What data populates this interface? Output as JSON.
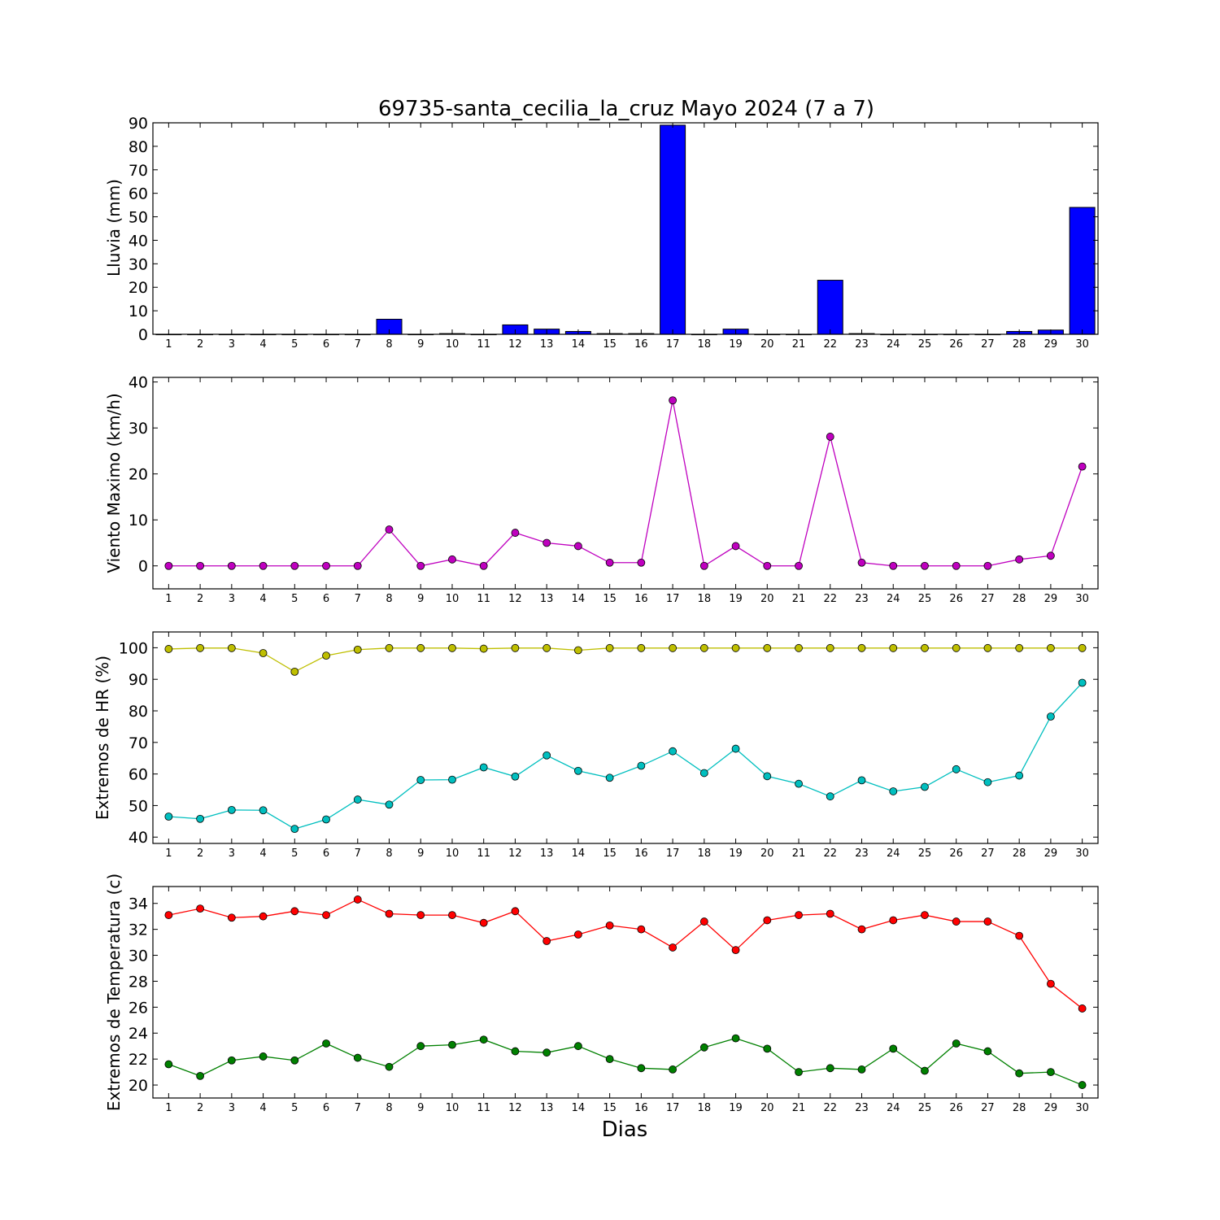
{
  "figure": {
    "title": "69735-santa_cecilia_la_cruz Mayo 2024  (7 a 7)",
    "xlabel": "Dias"
  },
  "chart_data": [
    {
      "type": "bar",
      "ylabel": "Lluvia (mm)",
      "ylim": [
        0,
        90
      ],
      "yticks": [
        0,
        10,
        20,
        30,
        40,
        50,
        60,
        70,
        80,
        90
      ],
      "categories": [
        1,
        2,
        3,
        4,
        5,
        6,
        7,
        8,
        9,
        10,
        11,
        12,
        13,
        14,
        15,
        16,
        17,
        18,
        19,
        20,
        21,
        22,
        23,
        24,
        25,
        26,
        27,
        28,
        29,
        30
      ],
      "series": [
        {
          "color": "#0000ff",
          "values": [
            0,
            0,
            0,
            0,
            0,
            0,
            0,
            6.4,
            0,
            0.3,
            0,
            4,
            2.2,
            1.2,
            0.3,
            0.3,
            89,
            0,
            2.2,
            0,
            0,
            23,
            0.3,
            0,
            0,
            0,
            0,
            1.2,
            1.8,
            54
          ]
        }
      ],
      "grid": false
    },
    {
      "type": "line",
      "ylabel": "Viento Maximo (km/h)",
      "ylim": [
        -5,
        41
      ],
      "yticks": [
        0,
        10,
        20,
        30,
        40
      ],
      "x": [
        1,
        2,
        3,
        4,
        5,
        6,
        7,
        8,
        9,
        10,
        11,
        12,
        13,
        14,
        15,
        16,
        17,
        18,
        19,
        20,
        21,
        22,
        23,
        24,
        25,
        26,
        27,
        28,
        29,
        30
      ],
      "series": [
        {
          "color": "#bf00bf",
          "values": [
            0,
            0,
            0,
            0,
            0,
            0,
            0,
            7.9,
            0,
            1.4,
            0,
            7.2,
            5,
            4.3,
            0.7,
            0.7,
            36,
            0,
            4.3,
            0,
            0,
            28.1,
            0.7,
            0,
            0,
            0,
            0,
            1.4,
            2.2,
            21.6
          ]
        }
      ],
      "grid": false
    },
    {
      "type": "line",
      "ylabel": "Extremos de HR (%)",
      "ylim": [
        38,
        105
      ],
      "yticks": [
        40,
        50,
        60,
        70,
        80,
        90,
        100
      ],
      "x": [
        1,
        2,
        3,
        4,
        5,
        6,
        7,
        8,
        9,
        10,
        11,
        12,
        13,
        14,
        15,
        16,
        17,
        18,
        19,
        20,
        21,
        22,
        23,
        24,
        25,
        26,
        27,
        28,
        29,
        30
      ],
      "series": [
        {
          "color": "#bfbf00",
          "values": [
            99.6,
            99.9,
            99.9,
            98.3,
            92.4,
            97.5,
            99.4,
            99.9,
            99.9,
            99.9,
            99.7,
            99.9,
            99.9,
            99.2,
            99.9,
            99.9,
            99.9,
            99.9,
            99.9,
            99.9,
            99.9,
            99.9,
            99.9,
            99.9,
            99.9,
            99.9,
            99.9,
            99.9,
            99.9,
            99.9
          ]
        },
        {
          "color": "#00bfbf",
          "values": [
            46.5,
            45.8,
            48.6,
            48.5,
            42.6,
            45.6,
            51.9,
            50.3,
            58.1,
            58.2,
            62.1,
            59.2,
            65.9,
            61,
            58.8,
            62.6,
            67.2,
            60.3,
            68,
            59.3,
            56.9,
            52.9,
            58,
            54.5,
            55.9,
            61.5,
            57.4,
            59.5,
            78.2,
            88.9
          ]
        }
      ],
      "grid": false
    },
    {
      "type": "line",
      "ylabel": "Extremos de Temperatura (c)",
      "ylim": [
        19,
        35.3
      ],
      "yticks": [
        20,
        22,
        24,
        26,
        28,
        30,
        32,
        34
      ],
      "x": [
        1,
        2,
        3,
        4,
        5,
        6,
        7,
        8,
        9,
        10,
        11,
        12,
        13,
        14,
        15,
        16,
        17,
        18,
        19,
        20,
        21,
        22,
        23,
        24,
        25,
        26,
        27,
        28,
        29,
        30
      ],
      "series": [
        {
          "color": "#ff0000",
          "values": [
            33.1,
            33.6,
            32.9,
            33,
            33.4,
            33.1,
            34.3,
            33.2,
            33.1,
            33.1,
            32.5,
            33.4,
            31.1,
            31.6,
            32.3,
            32,
            30.6,
            32.6,
            30.4,
            32.7,
            33.1,
            33.2,
            32,
            32.7,
            33.1,
            32.6,
            32.6,
            31.5,
            27.8,
            25.9
          ]
        },
        {
          "color": "#008000",
          "values": [
            21.6,
            20.7,
            21.9,
            22.2,
            21.9,
            23.2,
            22.1,
            21.4,
            23,
            23.1,
            23.5,
            22.6,
            22.5,
            23,
            22,
            21.3,
            21.2,
            22.9,
            23.6,
            22.8,
            21,
            21.3,
            21.2,
            22.8,
            21.1,
            23.2,
            22.6,
            20.9,
            21,
            20
          ]
        }
      ],
      "grid": false
    }
  ]
}
